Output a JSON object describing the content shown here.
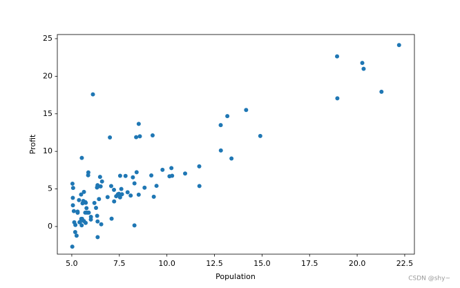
{
  "chart_data": {
    "type": "scatter",
    "x_label": "Population",
    "y_label": "Profit",
    "color": "#1f77b4",
    "xlim": [
      4.24,
      23.01
    ],
    "ylim": [
      -3.68,
      25.55
    ],
    "xticks": [
      {
        "value": 5,
        "label": "5.0"
      },
      {
        "value": 7.5,
        "label": "7.5"
      },
      {
        "value": 10,
        "label": "10.0"
      },
      {
        "value": 12.5,
        "label": "12.5"
      },
      {
        "value": 15,
        "label": "15.0"
      },
      {
        "value": 17.5,
        "label": "17.5"
      },
      {
        "value": 20,
        "label": "20.0"
      },
      {
        "value": 22.5,
        "label": "22.5"
      }
    ],
    "yticks": [
      0,
      5,
      10,
      15,
      20,
      25
    ],
    "watermark": "CSDN @shy~",
    "x": [
      6.1101,
      5.5277,
      8.5186,
      7.0032,
      5.8598,
      8.3829,
      7.4764,
      8.5781,
      6.4862,
      5.0546,
      5.7107,
      14.164,
      5.734,
      8.4084,
      5.6407,
      5.3794,
      6.3654,
      5.1301,
      6.4296,
      7.0708,
      6.1891,
      20.27,
      5.4901,
      6.3261,
      5.5649,
      18.945,
      12.828,
      10.957,
      13.176,
      22.203,
      5.2524,
      6.5894,
      9.2482,
      5.8918,
      8.2111,
      7.9334,
      8.0959,
      5.6063,
      12.836,
      6.3534,
      5.4069,
      6.8825,
      11.708,
      5.7737,
      7.8247,
      7.0931,
      5.0702,
      5.8014,
      11.7,
      5.5416,
      7.5402,
      5.3077,
      7.4239,
      7.6031,
      6.3328,
      6.3589,
      6.2742,
      5.6397,
      9.3102,
      9.4536,
      8.8254,
      5.1793,
      21.279,
      14.908,
      18.959,
      7.2182,
      8.2951,
      10.236,
      5.4994,
      20.341,
      10.136,
      7.3345,
      6.0062,
      7.2259,
      5.0269,
      6.5479,
      7.5386,
      5.0365,
      10.274,
      5.1077,
      5.7292,
      5.1884,
      6.3557,
      9.7687,
      6.5159,
      8.5172,
      9.1802,
      6.002,
      5.5204,
      5.0594,
      5.7077,
      7.6366,
      5.8707,
      5.3054,
      8.2934,
      13.394,
      5.4369
    ],
    "y": [
      17.592,
      9.1302,
      13.662,
      11.854,
      6.8233,
      11.886,
      4.3483,
      12,
      6.5987,
      3.8166,
      3.2522,
      15.505,
      3.1551,
      7.2258,
      0.71618,
      3.5129,
      5.3048,
      0.56077,
      3.6518,
      5.3893,
      3.1386,
      21.767,
      4.263,
      5.1875,
      3.0825,
      22.638,
      13.501,
      7.0467,
      14.692,
      24.147,
      -1.22,
      5.9966,
      12.134,
      1.8495,
      6.5426,
      4.5623,
      4.1164,
      3.3928,
      10.117,
      5.4974,
      0.55657,
      3.9115,
      5.3854,
      2.4406,
      6.7318,
      1.0463,
      5.1337,
      1.844,
      8.0043,
      1.0179,
      6.7504,
      1.8396,
      4.2885,
      4.9981,
      1.4233,
      -1.4211,
      2.4756,
      4.6042,
      3.9624,
      5.4141,
      5.1694,
      -0.74279,
      17.929,
      12.054,
      17.054,
      4.8852,
      5.7442,
      7.7754,
      1.0173,
      20.992,
      6.6799,
      4.0259,
      1.2784,
      3.3411,
      -2.6807,
      0.29678,
      3.8845,
      5.7014,
      6.7526,
      2.0576,
      0.47953,
      0.20421,
      0.67861,
      7.5435,
      5.3436,
      4.2415,
      6.7981,
      0.92695,
      0.152,
      2.8214,
      1.8451,
      4.2959,
      7.2029,
      1.9869,
      0.14454,
      9.0551,
      0.61705
    ]
  }
}
